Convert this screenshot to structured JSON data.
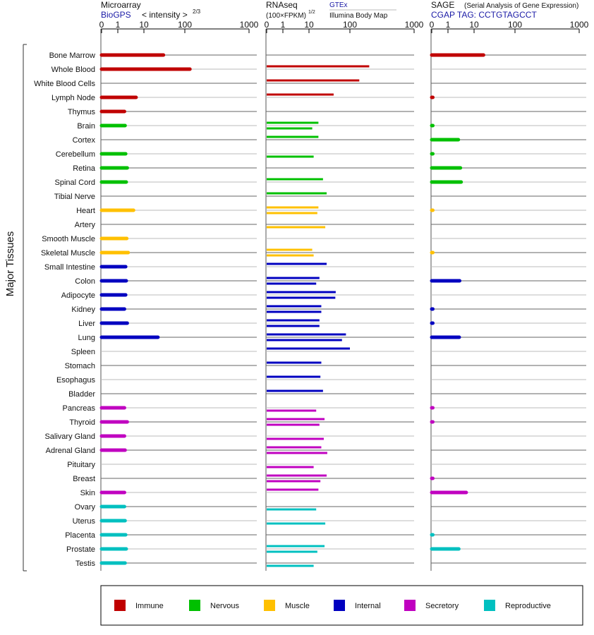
{
  "side_label": "Major Tissues",
  "panels": [
    {
      "key": "microarray",
      "title": "Microarray",
      "subtitle": "BioGPS",
      "note": "< intensity >",
      "note_exp": "2/3"
    },
    {
      "key": "rnaseq",
      "title": "RNAseq",
      "unit": "(100×FPKM)",
      "unit_exp": "1/2",
      "source_1": "GTEx",
      "source_2": "Illumina Body Map"
    },
    {
      "key": "sage",
      "title": "SAGE",
      "note": "(Serial Analysis of Gene Expression)",
      "subtitle": "CGAP TAG: CCTGTAGCCT"
    }
  ],
  "legend": [
    {
      "label": "Immune",
      "color": "#c00000"
    },
    {
      "label": "Nervous",
      "color": "#00c000"
    },
    {
      "label": "Muscle",
      "color": "#ffc000"
    },
    {
      "label": "Internal",
      "color": "#0000c0"
    },
    {
      "label": "Secretory",
      "color": "#c000c0"
    },
    {
      "label": "Reproductive",
      "color": "#00c0c0"
    }
  ],
  "chart_data": {
    "type": "bar",
    "orientation": "horizontal",
    "x_scale": "log",
    "x_ticks": [
      "0",
      "1",
      "10",
      "100",
      "1000"
    ],
    "xlim": [
      0,
      1000
    ],
    "categories": [
      "Bone Marrow",
      "Whole Blood",
      "White Blood Cells",
      "Lymph Node",
      "Thymus",
      "Brain",
      "Cortex",
      "Cerebellum",
      "Retina",
      "Spinal Cord",
      "Tibial Nerve",
      "Heart",
      "Artery",
      "Smooth Muscle",
      "Skeletal Muscle",
      "Small Intestine",
      "Colon",
      "Adipocyte",
      "Kidney",
      "Liver",
      "Lung",
      "Spleen",
      "Stomach",
      "Esophagus",
      "Bladder",
      "Pancreas",
      "Thyroid",
      "Salivary Gland",
      "Adrenal Gland",
      "Pituitary",
      "Breast",
      "Skin",
      "Ovary",
      "Uterus",
      "Placenta",
      "Prostate",
      "Testis"
    ],
    "category_group": [
      "Immune",
      "Immune",
      "Immune",
      "Immune",
      "Immune",
      "Nervous",
      "Nervous",
      "Nervous",
      "Nervous",
      "Nervous",
      "Nervous",
      "Muscle",
      "Muscle",
      "Muscle",
      "Muscle",
      "Internal",
      "Internal",
      "Internal",
      "Internal",
      "Internal",
      "Internal",
      "Internal",
      "Internal",
      "Internal",
      "Internal",
      "Secretory",
      "Secretory",
      "Secretory",
      "Secretory",
      "Secretory",
      "Secretory",
      "Secretory",
      "Reproductive",
      "Reproductive",
      "Reproductive",
      "Reproductive",
      "Reproductive"
    ],
    "series": [
      {
        "name": "Microarray",
        "values": [
          30,
          120,
          null,
          5,
          1.8,
          1.9,
          null,
          2,
          2.3,
          2.1,
          null,
          4,
          null,
          2.2,
          2.5,
          2,
          2.1,
          2,
          1.8,
          2.3,
          22,
          null,
          null,
          null,
          null,
          1.8,
          2.3,
          1.8,
          1.9,
          null,
          null,
          1.8,
          1.8,
          1.9,
          2,
          2.1,
          1.9
        ]
      },
      {
        "name": "RNAseq GTEx",
        "values": [
          null,
          200,
          140,
          40,
          null,
          17,
          17,
          null,
          null,
          22,
          27,
          17,
          null,
          null,
          12,
          27,
          18,
          45,
          20,
          18,
          80,
          100,
          20,
          19,
          22,
          null,
          24,
          null,
          20,
          null,
          27,
          17,
          null,
          null,
          null,
          24,
          null
        ]
      },
      {
        "name": "RNAseq Illumina Body Map",
        "values": [
          null,
          null,
          null,
          null,
          null,
          12,
          null,
          13,
          null,
          null,
          null,
          16,
          25,
          null,
          13,
          null,
          15,
          44,
          20,
          18,
          64,
          null,
          null,
          null,
          null,
          15,
          18,
          23,
          28,
          13,
          19,
          null,
          15,
          25,
          null,
          16,
          13
        ]
      },
      {
        "name": "SAGE",
        "values": [
          17,
          null,
          null,
          0.05,
          null,
          0.05,
          2.5,
          0.05,
          3,
          3.2,
          null,
          0.03,
          null,
          null,
          0.03,
          null,
          2.8,
          null,
          0.05,
          0.05,
          2.7,
          null,
          null,
          null,
          null,
          0.05,
          0.05,
          null,
          null,
          null,
          0.05,
          5,
          null,
          null,
          0.05,
          2.6,
          null
        ]
      }
    ]
  }
}
